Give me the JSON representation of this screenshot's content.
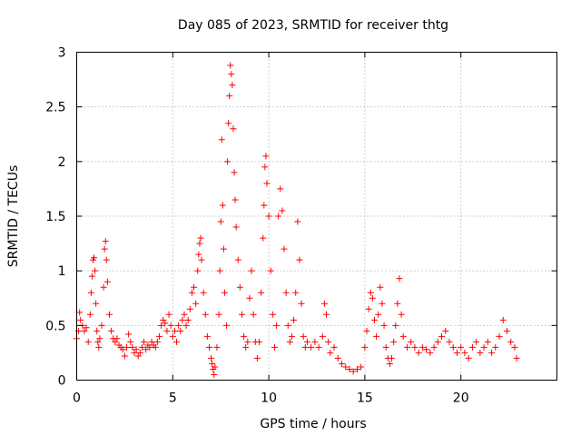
{
  "chart_data": {
    "type": "scatter",
    "title": "Day 085 of 2023, SRMTID for receiver thtg",
    "xlabel": "GPS time / hours",
    "ylabel": "SRMTID / TECUs",
    "xlim": [
      0,
      25
    ],
    "ylim": [
      0,
      3
    ],
    "xticks": [
      0,
      5,
      10,
      15,
      20
    ],
    "xtick_labels": [
      "0",
      "5",
      "10",
      "15",
      "20"
    ],
    "yticks": [
      0,
      0.5,
      1,
      1.5,
      2,
      2.5,
      3
    ],
    "ytick_labels": [
      "0",
      "0.5",
      "1",
      "1.5",
      "2",
      "2.5",
      "3"
    ],
    "grid": true,
    "marker": "plus",
    "color": "#ff0000",
    "series": [
      {
        "name": "SRMTID",
        "points": [
          [
            0.0,
            0.38
          ],
          [
            0.1,
            0.45
          ],
          [
            0.15,
            0.62
          ],
          [
            0.2,
            0.55
          ],
          [
            0.3,
            0.5
          ],
          [
            0.4,
            0.45
          ],
          [
            0.5,
            0.48
          ],
          [
            0.6,
            0.35
          ],
          [
            0.7,
            0.6
          ],
          [
            0.75,
            0.8
          ],
          [
            0.8,
            0.95
          ],
          [
            0.85,
            1.1
          ],
          [
            0.9,
            1.12
          ],
          [
            0.95,
            1.0
          ],
          [
            1.0,
            0.7
          ],
          [
            1.05,
            0.45
          ],
          [
            1.1,
            0.35
          ],
          [
            1.15,
            0.3
          ],
          [
            1.2,
            0.38
          ],
          [
            1.3,
            0.5
          ],
          [
            1.4,
            0.85
          ],
          [
            1.45,
            1.2
          ],
          [
            1.5,
            1.27
          ],
          [
            1.55,
            1.1
          ],
          [
            1.6,
            0.9
          ],
          [
            1.7,
            0.6
          ],
          [
            1.8,
            0.45
          ],
          [
            1.9,
            0.38
          ],
          [
            2.0,
            0.35
          ],
          [
            2.1,
            0.38
          ],
          [
            2.2,
            0.32
          ],
          [
            2.3,
            0.3
          ],
          [
            2.4,
            0.28
          ],
          [
            2.5,
            0.22
          ],
          [
            2.6,
            0.3
          ],
          [
            2.7,
            0.42
          ],
          [
            2.8,
            0.35
          ],
          [
            2.9,
            0.3
          ],
          [
            3.0,
            0.25
          ],
          [
            3.1,
            0.28
          ],
          [
            3.2,
            0.22
          ],
          [
            3.3,
            0.25
          ],
          [
            3.4,
            0.3
          ],
          [
            3.5,
            0.35
          ],
          [
            3.6,
            0.28
          ],
          [
            3.7,
            0.32
          ],
          [
            3.8,
            0.3
          ],
          [
            3.9,
            0.35
          ],
          [
            4.0,
            0.32
          ],
          [
            4.1,
            0.3
          ],
          [
            4.2,
            0.35
          ],
          [
            4.3,
            0.4
          ],
          [
            4.4,
            0.5
          ],
          [
            4.5,
            0.55
          ],
          [
            4.6,
            0.52
          ],
          [
            4.7,
            0.45
          ],
          [
            4.8,
            0.6
          ],
          [
            4.9,
            0.5
          ],
          [
            5.0,
            0.4
          ],
          [
            5.1,
            0.45
          ],
          [
            5.2,
            0.35
          ],
          [
            5.3,
            0.5
          ],
          [
            5.4,
            0.45
          ],
          [
            5.5,
            0.55
          ],
          [
            5.6,
            0.6
          ],
          [
            5.7,
            0.5
          ],
          [
            5.8,
            0.55
          ],
          [
            5.9,
            0.65
          ],
          [
            6.0,
            0.8
          ],
          [
            6.1,
            0.85
          ],
          [
            6.2,
            0.7
          ],
          [
            6.3,
            1.0
          ],
          [
            6.35,
            1.15
          ],
          [
            6.4,
            1.25
          ],
          [
            6.45,
            1.3
          ],
          [
            6.5,
            1.1
          ],
          [
            6.6,
            0.8
          ],
          [
            6.7,
            0.6
          ],
          [
            6.8,
            0.4
          ],
          [
            6.9,
            0.3
          ],
          [
            7.0,
            0.2
          ],
          [
            7.05,
            0.15
          ],
          [
            7.1,
            0.1
          ],
          [
            7.15,
            0.05
          ],
          [
            7.2,
            0.12
          ],
          [
            7.3,
            0.3
          ],
          [
            7.4,
            0.6
          ],
          [
            7.45,
            1.0
          ],
          [
            7.5,
            1.45
          ],
          [
            7.55,
            2.2
          ],
          [
            7.6,
            1.6
          ],
          [
            7.65,
            1.2
          ],
          [
            7.7,
            0.8
          ],
          [
            7.8,
            0.5
          ],
          [
            7.85,
            2.0
          ],
          [
            7.9,
            2.35
          ],
          [
            7.95,
            2.6
          ],
          [
            8.0,
            2.88
          ],
          [
            8.05,
            2.8
          ],
          [
            8.1,
            2.7
          ],
          [
            8.15,
            2.3
          ],
          [
            8.2,
            1.9
          ],
          [
            8.25,
            1.65
          ],
          [
            8.3,
            1.4
          ],
          [
            8.4,
            1.1
          ],
          [
            8.5,
            0.85
          ],
          [
            8.6,
            0.6
          ],
          [
            8.7,
            0.4
          ],
          [
            8.8,
            0.3
          ],
          [
            8.9,
            0.35
          ],
          [
            9.0,
            0.75
          ],
          [
            9.1,
            1.0
          ],
          [
            9.2,
            0.6
          ],
          [
            9.3,
            0.35
          ],
          [
            9.4,
            0.2
          ],
          [
            9.5,
            0.35
          ],
          [
            9.6,
            0.8
          ],
          [
            9.7,
            1.3
          ],
          [
            9.75,
            1.6
          ],
          [
            9.8,
            1.95
          ],
          [
            9.85,
            2.05
          ],
          [
            9.9,
            1.8
          ],
          [
            10.0,
            1.5
          ],
          [
            10.1,
            1.0
          ],
          [
            10.2,
            0.6
          ],
          [
            10.3,
            0.3
          ],
          [
            10.4,
            0.5
          ],
          [
            10.5,
            1.5
          ],
          [
            10.6,
            1.75
          ],
          [
            10.7,
            1.55
          ],
          [
            10.8,
            1.2
          ],
          [
            10.9,
            0.8
          ],
          [
            11.0,
            0.5
          ],
          [
            11.1,
            0.35
          ],
          [
            11.2,
            0.4
          ],
          [
            11.3,
            0.55
          ],
          [
            11.4,
            0.8
          ],
          [
            11.5,
            1.45
          ],
          [
            11.6,
            1.1
          ],
          [
            11.7,
            0.7
          ],
          [
            11.8,
            0.4
          ],
          [
            11.9,
            0.3
          ],
          [
            12.0,
            0.35
          ],
          [
            12.2,
            0.3
          ],
          [
            12.4,
            0.35
          ],
          [
            12.6,
            0.3
          ],
          [
            12.8,
            0.4
          ],
          [
            12.9,
            0.7
          ],
          [
            13.0,
            0.6
          ],
          [
            13.1,
            0.35
          ],
          [
            13.2,
            0.25
          ],
          [
            13.4,
            0.3
          ],
          [
            13.6,
            0.2
          ],
          [
            13.8,
            0.15
          ],
          [
            14.0,
            0.12
          ],
          [
            14.2,
            0.1
          ],
          [
            14.4,
            0.08
          ],
          [
            14.6,
            0.1
          ],
          [
            14.8,
            0.12
          ],
          [
            15.0,
            0.3
          ],
          [
            15.1,
            0.45
          ],
          [
            15.2,
            0.65
          ],
          [
            15.3,
            0.8
          ],
          [
            15.4,
            0.75
          ],
          [
            15.5,
            0.55
          ],
          [
            15.6,
            0.4
          ],
          [
            15.7,
            0.6
          ],
          [
            15.8,
            0.85
          ],
          [
            15.9,
            0.7
          ],
          [
            16.0,
            0.5
          ],
          [
            16.1,
            0.3
          ],
          [
            16.2,
            0.2
          ],
          [
            16.3,
            0.15
          ],
          [
            16.4,
            0.2
          ],
          [
            16.5,
            0.35
          ],
          [
            16.6,
            0.5
          ],
          [
            16.7,
            0.7
          ],
          [
            16.8,
            0.93
          ],
          [
            16.9,
            0.6
          ],
          [
            17.0,
            0.4
          ],
          [
            17.2,
            0.3
          ],
          [
            17.4,
            0.35
          ],
          [
            17.6,
            0.3
          ],
          [
            17.8,
            0.25
          ],
          [
            18.0,
            0.3
          ],
          [
            18.2,
            0.28
          ],
          [
            18.4,
            0.25
          ],
          [
            18.6,
            0.3
          ],
          [
            18.8,
            0.35
          ],
          [
            19.0,
            0.4
          ],
          [
            19.2,
            0.45
          ],
          [
            19.4,
            0.35
          ],
          [
            19.6,
            0.3
          ],
          [
            19.8,
            0.25
          ],
          [
            20.0,
            0.3
          ],
          [
            20.2,
            0.25
          ],
          [
            20.4,
            0.2
          ],
          [
            20.6,
            0.3
          ],
          [
            20.8,
            0.35
          ],
          [
            21.0,
            0.25
          ],
          [
            21.2,
            0.3
          ],
          [
            21.4,
            0.35
          ],
          [
            21.6,
            0.25
          ],
          [
            21.8,
            0.3
          ],
          [
            22.0,
            0.4
          ],
          [
            22.2,
            0.55
          ],
          [
            22.4,
            0.45
          ],
          [
            22.6,
            0.35
          ],
          [
            22.8,
            0.3
          ],
          [
            22.9,
            0.2
          ]
        ]
      }
    ]
  }
}
